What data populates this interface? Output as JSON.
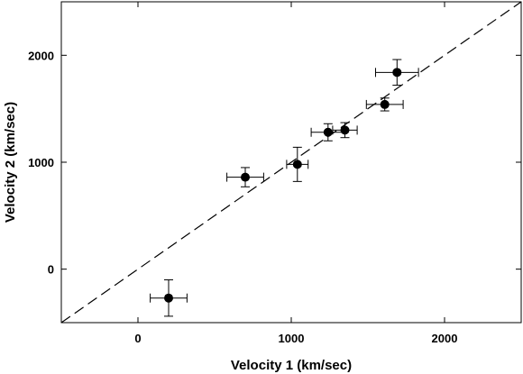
{
  "chart_data": {
    "type": "scatter",
    "title": "",
    "xlabel": "Velocity 1 (km/sec)",
    "ylabel": "Velocity 2 (km/sec)",
    "xlim": [
      -500,
      2500
    ],
    "ylim": [
      -500,
      2500
    ],
    "x_ticks": [
      0,
      1000,
      2000
    ],
    "y_ticks": [
      0,
      1000,
      2000
    ],
    "x_tick_labels": [
      "0",
      "1000",
      "2000"
    ],
    "y_tick_labels": [
      "0",
      "1000",
      "2000"
    ],
    "grid": false,
    "reference_line": {
      "style": "dashed",
      "slope": 1,
      "intercept": 0
    },
    "series": [
      {
        "points": [
          {
            "x": 200,
            "y": -270,
            "xerr": 120,
            "yerr": 170
          },
          {
            "x": 700,
            "y": 860,
            "xerr": 120,
            "yerr": 90
          },
          {
            "x": 1040,
            "y": 980,
            "xerr": 70,
            "yerr": 160
          },
          {
            "x": 1240,
            "y": 1280,
            "xerr": 110,
            "yerr": 80
          },
          {
            "x": 1350,
            "y": 1300,
            "xerr": 80,
            "yerr": 70
          },
          {
            "x": 1610,
            "y": 1540,
            "xerr": 120,
            "yerr": 60
          },
          {
            "x": 1690,
            "y": 1840,
            "xerr": 140,
            "yerr": 120
          }
        ]
      }
    ]
  }
}
